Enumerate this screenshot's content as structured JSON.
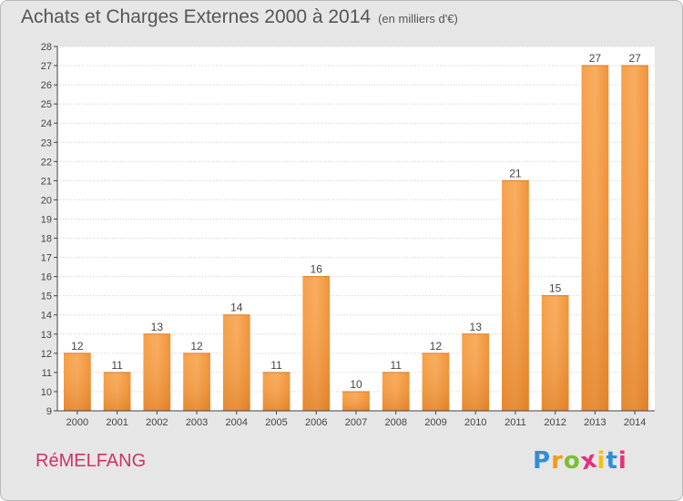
{
  "header": {
    "title": "Achats et Charges Externes 2000 à 2014",
    "subtitle": "(en milliers d'€)"
  },
  "footer": {
    "commune": "RéMELFANG",
    "logo_letters": [
      "P",
      "r",
      "o",
      "x",
      "i",
      "t",
      "i"
    ],
    "logo_colors": [
      "#2f8ed8",
      "#f29a1c",
      "#7cbf2f",
      "#e2327a",
      "#f2c01c",
      "#2f8ed8",
      "#e2327a"
    ]
  },
  "colors": {
    "bar_light": "#f8a856",
    "bar_dark": "#e07a1c",
    "grid": "#cccccc",
    "axis_text": "#444444"
  },
  "chart_data": {
    "type": "bar",
    "categories": [
      "2000",
      "2001",
      "2002",
      "2003",
      "2004",
      "2005",
      "2006",
      "2007",
      "2008",
      "2009",
      "2010",
      "2011",
      "2012",
      "2013",
      "2014"
    ],
    "values": [
      12,
      11,
      13,
      12,
      14,
      11,
      16,
      10,
      11,
      12,
      13,
      21,
      15,
      27,
      27
    ],
    "title": "Achats et Charges Externes 2000 à 2014",
    "ylim": [
      9,
      28
    ],
    "yticks": [
      9,
      10,
      11,
      12,
      13,
      14,
      15,
      16,
      17,
      18,
      19,
      20,
      21,
      22,
      23,
      24,
      25,
      26,
      27,
      28
    ],
    "grid": true
  }
}
